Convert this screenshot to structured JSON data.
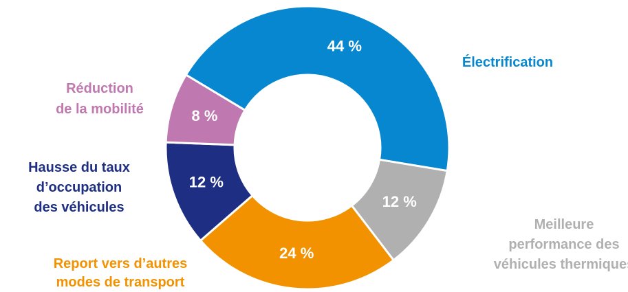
{
  "chart_data": {
    "type": "donut",
    "categories": [
      [
        "Électrification"
      ],
      [
        "Meilleure",
        "performance des",
        "véhicules thermiques"
      ],
      [
        "Report vers d’autres",
        "modes de transport"
      ],
      [
        "Hausse du taux",
        "d’occupation",
        "des véhicules"
      ],
      [
        "Réduction",
        "de la mobilité"
      ]
    ],
    "values": [
      44,
      12,
      24,
      12,
      8
    ],
    "value_labels": [
      "44 %",
      "12 %",
      "24 %",
      "12 %",
      "8 %"
    ],
    "colors": [
      "#0787d0",
      "#b0b0b0",
      "#f39200",
      "#1d2e83",
      "#c078b0"
    ]
  }
}
